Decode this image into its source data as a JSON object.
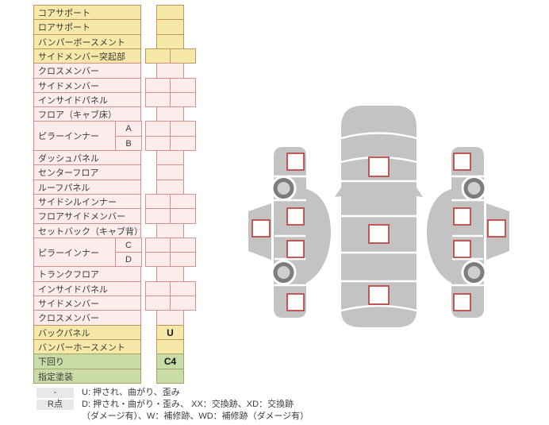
{
  "table": {
    "rows": [
      {
        "label": "コアサポート",
        "type": "yellow",
        "cells": 1,
        "value": ""
      },
      {
        "label": "ロアサポート",
        "type": "yellow",
        "cells": 1,
        "value": ""
      },
      {
        "label": "バンパーボースメント",
        "type": "yellow",
        "cells": 1,
        "value": ""
      },
      {
        "label": "サイドメンバー突起部",
        "type": "yellow",
        "cells": 2,
        "value": ""
      },
      {
        "label": "クロスメンバー",
        "type": "pink",
        "cells": 1,
        "value": ""
      },
      {
        "label": "サイドメンバー",
        "type": "pink",
        "cells": 2,
        "value": ""
      },
      {
        "label": "インサイドパネル",
        "type": "pink",
        "cells": 2,
        "value": ""
      },
      {
        "label": "フロア（キャブ床）",
        "type": "pink",
        "cells": 1,
        "value": ""
      },
      {
        "label": "ピラーインナー",
        "sub": "A",
        "group": "start",
        "type": "pink",
        "cells": 2,
        "value": ""
      },
      {
        "label": "ピラーインナー",
        "sub": "B",
        "group": "end",
        "type": "pink",
        "cells": 2,
        "value": ""
      },
      {
        "label": "ダッシュパネル",
        "type": "pink",
        "cells": 1,
        "value": ""
      },
      {
        "label": "センターフロア",
        "type": "pink",
        "cells": 1,
        "value": ""
      },
      {
        "label": "ルーフパネル",
        "type": "pink",
        "cells": 1,
        "value": ""
      },
      {
        "label": "サイドシルインナー",
        "type": "pink",
        "cells": 2,
        "value": ""
      },
      {
        "label": "フロアサイドメンバー",
        "type": "pink",
        "cells": 2,
        "value": ""
      },
      {
        "label": "セットバック（キャブ背）",
        "type": "pink",
        "cells": 1,
        "value": ""
      },
      {
        "label": "ピラーインナー",
        "sub": "C",
        "group": "start",
        "type": "pink",
        "cells": 2,
        "value": ""
      },
      {
        "label": "ピラーインナー",
        "sub": "D",
        "group": "end",
        "type": "pink",
        "cells": 2,
        "value": ""
      },
      {
        "label": "トランクフロア",
        "type": "pink",
        "cells": 1,
        "value": ""
      },
      {
        "label": "インサイドパネル",
        "type": "pink",
        "cells": 2,
        "value": ""
      },
      {
        "label": "サイドメンバー",
        "type": "pink",
        "cells": 2,
        "value": ""
      },
      {
        "label": "クロスメンバー",
        "type": "pink",
        "cells": 1,
        "value": ""
      },
      {
        "label": "バックパネル",
        "type": "yellow",
        "cells": 1,
        "value": "U"
      },
      {
        "label": "バンパーホースメント",
        "type": "yellow",
        "cells": 1,
        "value": ""
      },
      {
        "label": "下回り",
        "type": "green",
        "cells": 1,
        "value": "C4"
      },
      {
        "label": "指定塗装",
        "type": "green",
        "cells": 1,
        "value": ""
      }
    ]
  },
  "legend": {
    "row1_badge": "-",
    "row1_text": "U: 押され、曲がり、歪み",
    "row2_badge": "R点",
    "row2_text": "D: 押され・曲がり・歪み、 XX：交換跡、XD：交換跡",
    "row3_text": "（ダメージ有）、W：補修跡、WD：補修跡（ダメージ有）"
  },
  "colors": {
    "yellow_bg": "#f6e9a8",
    "yellow_border": "#c2945f",
    "pink_bg": "#fcecec",
    "pink_border": "#d98f8f",
    "green_bg": "#c9dba6",
    "green_border": "#a3a566",
    "marker_border": "#c14848",
    "car_gray": "#c3c3c3",
    "badge_bg": "#e8e8e8"
  }
}
